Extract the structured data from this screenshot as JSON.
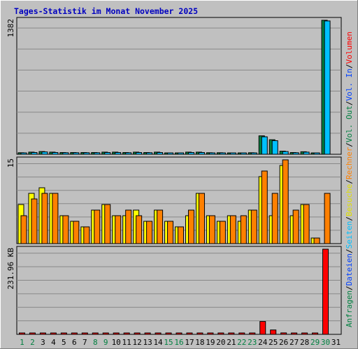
{
  "chart_data": {
    "type": "bar",
    "title": "Tages-Statistik im Monat November 2025",
    "colors": {
      "frame": "#c0c0c0",
      "title": "#0000c0",
      "grid": "#888888",
      "hits": "#008040",
      "files": "#00c0ff",
      "pages": "#00e0e0",
      "visits": "#ffff00",
      "sites": "#ff8000",
      "volume": "#ff0000",
      "weekend_label": "#008040",
      "weekday_label": "#000000"
    },
    "days": [
      "1",
      "2",
      "3",
      "4",
      "5",
      "6",
      "7",
      "8",
      "9",
      "10",
      "11",
      "12",
      "13",
      "14",
      "15",
      "16",
      "17",
      "18",
      "19",
      "20",
      "21",
      "22",
      "23",
      "24",
      "25",
      "26",
      "27",
      "28",
      "29",
      "30",
      "31"
    ],
    "weekend_days": [
      "1",
      "2",
      "8",
      "9",
      "15",
      "16",
      "22",
      "23",
      "29",
      "30"
    ],
    "panels": [
      {
        "max_label": "1382",
        "ylim": [
          0,
          1382
        ],
        "series": [
          {
            "key": "hits",
            "legend": "Anfragen",
            "values": [
              16,
              22,
              28,
              22,
              18,
              18,
              18,
              18,
              22,
              22,
              18,
              22,
              18,
              22,
              10,
              10,
              22,
              22,
              16,
              16,
              10,
              10,
              16,
              190,
              150,
              32,
              18,
              26,
              10,
              1382,
              null
            ]
          },
          {
            "key": "files",
            "legend": "Dateien",
            "values": [
              12,
              18,
              24,
              18,
              16,
              16,
              16,
              16,
              18,
              18,
              16,
              18,
              16,
              18,
              8,
              8,
              18,
              18,
              12,
              12,
              8,
              8,
              12,
              180,
              140,
              28,
              16,
              22,
              8,
              1375,
              null
            ]
          }
        ]
      },
      {
        "max_label": "15",
        "ylim": [
          0,
          15
        ],
        "series": [
          {
            "key": "visits",
            "legend": "Besuche",
            "values": [
              7,
              9,
              10,
              9,
              5,
              4,
              3,
              6,
              7,
              5,
              5,
              6,
              4,
              6,
              4,
              3,
              5,
              9,
              5,
              4,
              5,
              4,
              6,
              12,
              5,
              14,
              5,
              7,
              1,
              null,
              null
            ]
          },
          {
            "key": "sites",
            "legend": "Rechner",
            "values": [
              5,
              8,
              9,
              9,
              5,
              4,
              3,
              6,
              7,
              5,
              6,
              5,
              4,
              6,
              4,
              3,
              6,
              9,
              5,
              4,
              5,
              5,
              6,
              13,
              9,
              15,
              6,
              7,
              1,
              9,
              null
            ]
          }
        ]
      },
      {
        "max_label": "231.96 KB",
        "ylim": [
          0,
          231.96
        ],
        "series": [
          {
            "key": "volume",
            "legend": "Volumen",
            "values": [
              1.5,
              1.5,
              1.5,
              1.5,
              1.5,
              1.5,
              1.5,
              2,
              1.5,
              2,
              1.5,
              1.5,
              1.5,
              1.5,
              1.5,
              1.5,
              2,
              2,
              1.5,
              1.5,
              1.5,
              1.5,
              2,
              35,
              12,
              4,
              2,
              2,
              2,
              231.96,
              null
            ]
          }
        ]
      }
    ],
    "right_legend": [
      {
        "text": "Anfragen",
        "color": "#008040"
      },
      {
        "text": "/",
        "color": "#000000"
      },
      {
        "text": "Dateien",
        "color": "#0040ff"
      },
      {
        "text": "/",
        "color": "#000000"
      },
      {
        "text": "Seiten",
        "color": "#00c0ff"
      },
      {
        "text": "/",
        "color": "#000000"
      },
      {
        "text": "Besuche",
        "color": "#e0e000"
      },
      {
        "text": "/",
        "color": "#000000"
      },
      {
        "text": "Rechner",
        "color": "#ff8000"
      },
      {
        "text": "/",
        "color": "#000000"
      },
      {
        "text": "Vol. Out",
        "color": "#008040"
      },
      {
        "text": "/",
        "color": "#000000"
      },
      {
        "text": "Vol. In",
        "color": "#0040ff"
      },
      {
        "text": "/",
        "color": "#000000"
      },
      {
        "text": "Volumen",
        "color": "#ff0000"
      }
    ]
  }
}
